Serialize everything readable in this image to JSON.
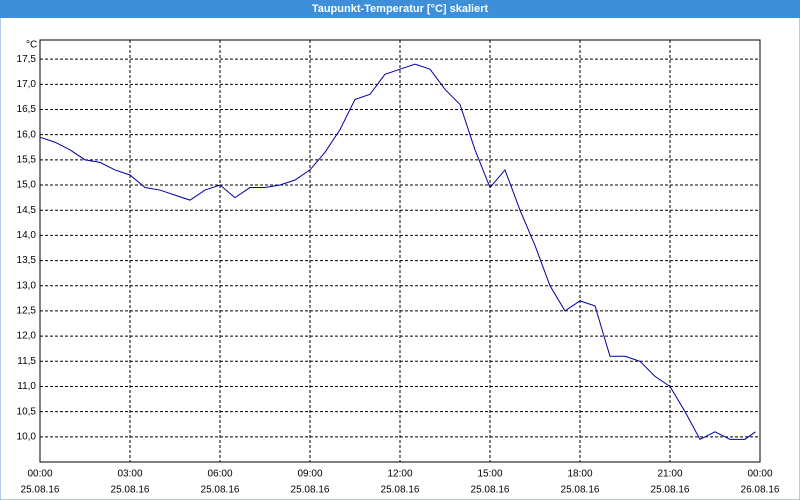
{
  "window_title": "Taupunkt-Temperatur [°C] skaliert",
  "chart_data": {
    "type": "line",
    "y_axis_label": "°C",
    "x": [
      0,
      0.5,
      1,
      1.5,
      2,
      2.5,
      3,
      3.5,
      4,
      4.5,
      5,
      5.5,
      6,
      6.5,
      7,
      7.5,
      8,
      8.5,
      9,
      9.5,
      10,
      10.5,
      11,
      11.5,
      12,
      12.5,
      13,
      13.5,
      14,
      14.5,
      15,
      15.5,
      16,
      16.5,
      17,
      17.5,
      18,
      18.5,
      19,
      19.5,
      20,
      20.5,
      21,
      21.5,
      22,
      22.5,
      23,
      23.5,
      23.85
    ],
    "series": [
      {
        "name": "Taupunkt-Temperatur",
        "color": "#0000a0",
        "values": [
          15.95,
          15.85,
          15.7,
          15.5,
          15.45,
          15.3,
          15.2,
          14.95,
          14.9,
          14.8,
          14.7,
          14.9,
          15.0,
          14.75,
          14.95,
          14.95,
          15.0,
          15.1,
          15.3,
          15.65,
          16.1,
          16.7,
          16.8,
          17.2,
          17.3,
          17.4,
          17.3,
          16.9,
          16.6,
          15.7,
          14.95,
          15.3,
          14.5,
          13.8,
          13.0,
          12.5,
          12.7,
          12.6,
          11.6,
          11.6,
          11.5,
          11.2,
          11.0,
          10.5,
          9.95,
          10.1,
          9.95,
          9.95,
          10.1
        ]
      }
    ],
    "xlim": [
      0,
      24
    ],
    "ylim": [
      9.5,
      17.88
    ],
    "xticks": [
      {
        "value": 0,
        "label": "00:00",
        "date": "25.08.16"
      },
      {
        "value": 3,
        "label": "03:00",
        "date": "25.08.16"
      },
      {
        "value": 6,
        "label": "06:00",
        "date": "25.08.16"
      },
      {
        "value": 9,
        "label": "09:00",
        "date": "25.08.16"
      },
      {
        "value": 12,
        "label": "12:00",
        "date": "25.08.16"
      },
      {
        "value": 15,
        "label": "15:00",
        "date": "25.08.16"
      },
      {
        "value": 18,
        "label": "18:00",
        "date": "25.08.16"
      },
      {
        "value": 21,
        "label": "21:00",
        "date": "25.08.16"
      },
      {
        "value": 24,
        "label": "00:00",
        "date": "26.08.16"
      }
    ],
    "yticks": [
      {
        "value": 10,
        "label": "10,0"
      },
      {
        "value": 10.5,
        "label": "10,5"
      },
      {
        "value": 11,
        "label": "11,0"
      },
      {
        "value": 11.5,
        "label": "11,5"
      },
      {
        "value": 12,
        "label": "12,0"
      },
      {
        "value": 12.5,
        "label": "12,5"
      },
      {
        "value": 13,
        "label": "13,0"
      },
      {
        "value": 13.5,
        "label": "13,5"
      },
      {
        "value": 14,
        "label": "14,0"
      },
      {
        "value": 14.5,
        "label": "14,5"
      },
      {
        "value": 15,
        "label": "15,0"
      },
      {
        "value": 15.5,
        "label": "15,5"
      },
      {
        "value": 16,
        "label": "16,0"
      },
      {
        "value": 16.5,
        "label": "16,5"
      },
      {
        "value": 17,
        "label": "17,0"
      },
      {
        "value": 17.5,
        "label": "17,5"
      }
    ],
    "grid": true
  }
}
